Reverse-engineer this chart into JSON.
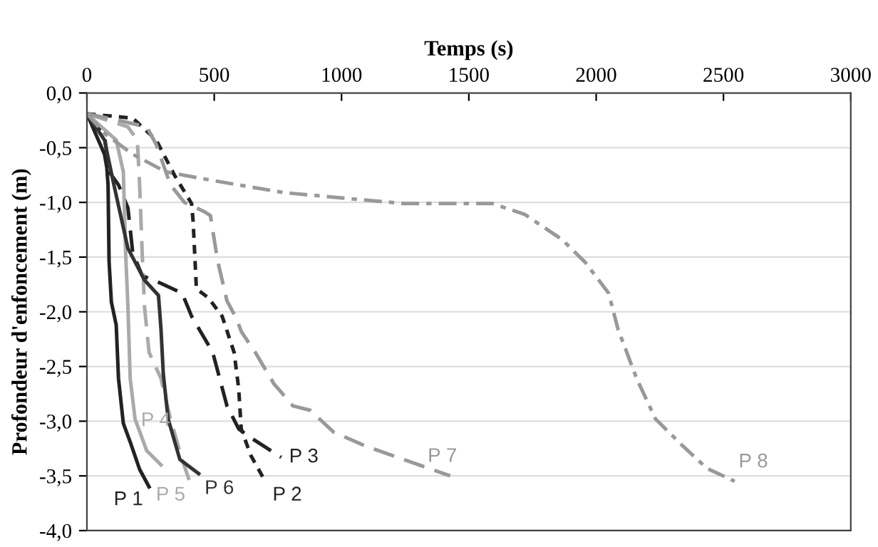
{
  "chart_data": {
    "type": "line",
    "xlabel": "Temps (s)",
    "ylabel": "Profondeur d'enfoncement (m)",
    "xlim": [
      0,
      3000
    ],
    "xticks": [
      0,
      500,
      1000,
      1500,
      2000,
      2500,
      3000
    ],
    "ylim": [
      -4.0,
      0.0
    ],
    "yticks": [
      {
        "value": 0.0,
        "label": "0,0"
      },
      {
        "value": -0.5,
        "label": "-0,5"
      },
      {
        "value": -1.0,
        "label": "-1,0"
      },
      {
        "value": -1.5,
        "label": "-1,5"
      },
      {
        "value": -2.0,
        "label": "-2,0"
      },
      {
        "value": -2.5,
        "label": "-2,5"
      },
      {
        "value": -3.0,
        "label": "-3,0"
      },
      {
        "value": -3.5,
        "label": "-3,5"
      },
      {
        "value": -4.0,
        "label": "-4,0"
      }
    ],
    "grid": "y",
    "legend": false,
    "marker": "none",
    "series": [
      {
        "name": "P 1",
        "color": "#222222",
        "line_style": "solid",
        "x": [
          0,
          69,
          78,
          83,
          87,
          96,
          115,
          124,
          143,
          170,
          207,
          244
        ],
        "values": [
          -0.19,
          -0.56,
          -0.68,
          -0.84,
          -1.54,
          -1.91,
          -2.12,
          -2.61,
          -3.02,
          -3.19,
          -3.44,
          -3.6
        ]
      },
      {
        "name": "P 2",
        "color": "#222222",
        "line_style": "dotted",
        "x": [
          0,
          180,
          272,
          346,
          411,
          417,
          430,
          476,
          531,
          578,
          596,
          606,
          643,
          698
        ],
        "values": [
          -0.19,
          -0.23,
          -0.43,
          -0.76,
          -1.01,
          -1.17,
          -1.79,
          -1.87,
          -2.04,
          -2.37,
          -2.7,
          -3.07,
          -3.31,
          -3.54
        ]
      },
      {
        "name": "P 3",
        "color": "#222222",
        "line_style": "dashed",
        "x": [
          0,
          69,
          87,
          124,
          161,
          180,
          217,
          281,
          374,
          411,
          494,
          550,
          596,
          643,
          763
        ],
        "values": [
          -0.19,
          -0.39,
          -0.72,
          -0.84,
          -1.05,
          -1.46,
          -1.67,
          -1.73,
          -1.83,
          -2.04,
          -2.37,
          -2.86,
          -3.07,
          -3.15,
          -3.33
        ]
      },
      {
        "name": "P 4",
        "color": "#aaaaaa",
        "line_style": "solid",
        "x": [
          0,
          115,
          143,
          152,
          161,
          170,
          189,
          235,
          291
        ],
        "values": [
          -0.19,
          -0.43,
          -0.72,
          -1.46,
          -1.95,
          -2.61,
          -2.98,
          -3.27,
          -3.4
        ]
      },
      {
        "name": "P 5",
        "color": "#aaaaaa",
        "line_style": "dashed",
        "x": [
          0,
          161,
          198,
          207,
          217,
          226,
          244,
          291,
          328,
          374,
          402
        ],
        "values": [
          -0.19,
          -0.31,
          -0.43,
          -0.84,
          -1.46,
          -1.95,
          -2.37,
          -2.61,
          -2.98,
          -3.35,
          -3.54
        ]
      },
      {
        "name": "P 6",
        "color": "#333333",
        "line_style": "solid",
        "x": [
          0,
          69,
          106,
          161,
          226,
          281,
          291,
          300,
          319,
          365,
          439
        ],
        "values": [
          -0.19,
          -0.43,
          -0.84,
          -1.42,
          -1.71,
          -1.85,
          -2.16,
          -2.57,
          -2.98,
          -3.35,
          -3.48
        ]
      },
      {
        "name": "P 7",
        "color": "#999999",
        "line_style": "dashed",
        "x": [
          0,
          124,
          235,
          272,
          328,
          383,
          457,
          485,
          513,
          550,
          587,
          606,
          661,
          735,
          809,
          877,
          969,
          1097,
          1244,
          1427
        ],
        "values": [
          -0.19,
          -0.25,
          -0.31,
          -0.47,
          -0.84,
          -1.0,
          -1.08,
          -1.12,
          -1.53,
          -1.9,
          -2.06,
          -2.18,
          -2.37,
          -2.66,
          -2.86,
          -2.9,
          -3.1,
          -3.23,
          -3.35,
          -3.5
        ]
      },
      {
        "name": "P 8",
        "color": "#999999",
        "line_style": "dashdot",
        "x": [
          0,
          69,
          180,
          309,
          494,
          772,
          1050,
          1244,
          1592,
          1720,
          1866,
          1958,
          2049,
          2086,
          2159,
          2233,
          2342,
          2434,
          2544
        ],
        "values": [
          -0.19,
          -0.37,
          -0.56,
          -0.72,
          -0.8,
          -0.91,
          -0.97,
          -1.01,
          -1.01,
          -1.11,
          -1.34,
          -1.55,
          -1.83,
          -2.16,
          -2.61,
          -2.98,
          -3.23,
          -3.43,
          -3.55
        ]
      }
    ]
  }
}
